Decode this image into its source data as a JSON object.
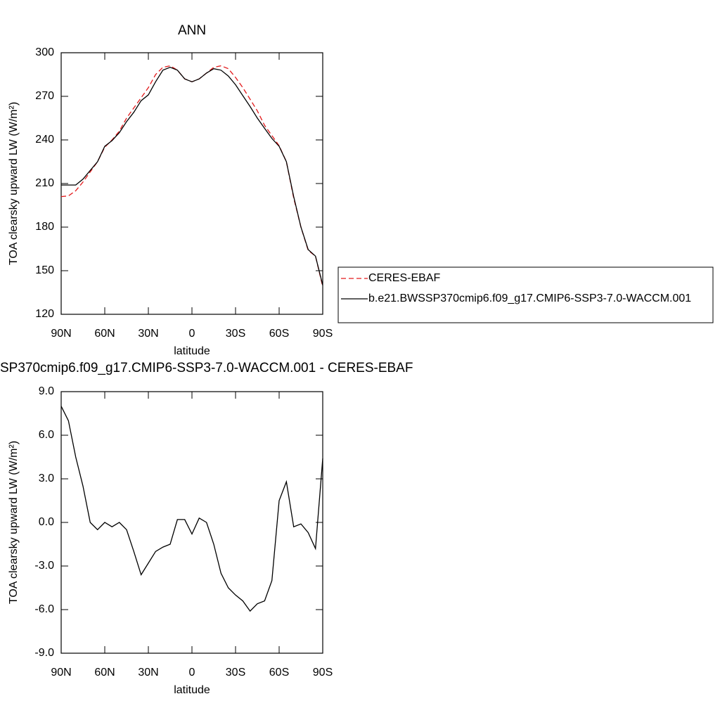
{
  "chart_data": [
    {
      "type": "line",
      "title": "ANN",
      "x_label": "latitude",
      "y_label": "TOA clearsky upward LW (W/m²)",
      "x": [
        90,
        85,
        80,
        75,
        70,
        65,
        60,
        55,
        50,
        45,
        40,
        35,
        30,
        25,
        20,
        15,
        10,
        5,
        0,
        -5,
        -10,
        -15,
        -20,
        -25,
        -30,
        -35,
        -40,
        -45,
        -50,
        -55,
        -60,
        -65,
        -70,
        -75,
        -80,
        -85,
        -90
      ],
      "xlim": [
        90,
        -90
      ],
      "xticks": [
        {
          "value": 90,
          "label": "90N"
        },
        {
          "value": 60,
          "label": "60N"
        },
        {
          "value": 30,
          "label": "30N"
        },
        0,
        {
          "value": -30,
          "label": "30S"
        },
        {
          "value": -60,
          "label": "60S"
        },
        {
          "value": -90,
          "label": "90S"
        }
      ],
      "ylim": [
        120,
        300
      ],
      "yticks": [
        120,
        150,
        180,
        210,
        240,
        270,
        300
      ],
      "legend": "right",
      "series": [
        {
          "name": "CERES-EBAF",
          "color": "#e31a1c",
          "line_style": "dashed",
          "values": [
            201,
            201.5,
            205,
            211,
            218,
            225,
            235,
            240,
            246,
            255,
            262,
            269,
            276,
            285,
            290,
            291,
            288,
            282,
            280,
            282,
            286,
            290,
            291,
            289,
            283,
            276,
            268,
            260,
            250,
            243,
            236,
            225,
            200,
            180,
            164,
            160,
            139
          ]
        },
        {
          "name": "b.e21.BWSSP370cmip6.f09_g17.CMIP6-SSP3-7.0-WACCM.001",
          "color": "#000000",
          "line_style": "solid",
          "values": [
            209,
            209,
            209,
            213,
            219,
            225,
            235.6,
            239.5,
            245,
            252.6,
            259,
            267,
            271,
            280,
            288,
            290,
            288,
            282,
            280,
            282,
            286,
            289,
            288,
            284,
            278,
            270.5,
            263,
            255,
            248,
            241,
            235.6,
            225,
            201,
            180,
            164.5,
            160,
            140
          ]
        }
      ]
    },
    {
      "type": "line",
      "title": "SP370cmip6.f09_g17.CMIP6-SSP3-7.0-WACCM.001 - CERES-EBAF",
      "x_label": "latitude",
      "y_label": "TOA clearsky upward LW (W/m²)",
      "x": [
        90,
        85,
        80,
        75,
        70,
        65,
        60,
        55,
        50,
        45,
        40,
        35,
        30,
        25,
        20,
        15,
        10,
        5,
        0,
        -5,
        -10,
        -15,
        -20,
        -25,
        -30,
        -35,
        -40,
        -45,
        -50,
        -55,
        -60,
        -65,
        -70,
        -75,
        -80,
        -85,
        -90
      ],
      "xlim": [
        90,
        -90
      ],
      "xticks": [
        {
          "value": 90,
          "label": "90N"
        },
        {
          "value": 60,
          "label": "60N"
        },
        {
          "value": 30,
          "label": "30N"
        },
        0,
        {
          "value": -30,
          "label": "30S"
        },
        {
          "value": -60,
          "label": "60S"
        },
        {
          "value": -90,
          "label": "90S"
        }
      ],
      "ylim": [
        -9,
        9
      ],
      "yticks": [
        {
          "value": -9,
          "label": "-9.0"
        },
        {
          "value": -6,
          "label": "-6.0"
        },
        {
          "value": -3,
          "label": "-3.0"
        },
        {
          "value": 0,
          "label": "0.0"
        },
        {
          "value": 3,
          "label": "3.0"
        },
        {
          "value": 6,
          "label": "6.0"
        },
        {
          "value": 9,
          "label": "9.0"
        }
      ],
      "color": "#000000",
      "values": [
        8,
        7,
        4.5,
        2.5,
        0,
        -0.5,
        0,
        -0.3,
        0,
        -0.5,
        -2,
        -3.6,
        -2.8,
        -2,
        -1.7,
        -1.5,
        0.2,
        0.2,
        -0.8,
        0.3,
        0,
        -1.5,
        -3.5,
        -4.5,
        -5,
        -5.4,
        -6.1,
        -5.6,
        -5.4,
        -4,
        1.5,
        2.8,
        -0.3,
        -0.1,
        -0.7,
        -1.8,
        4.4
      ]
    }
  ]
}
